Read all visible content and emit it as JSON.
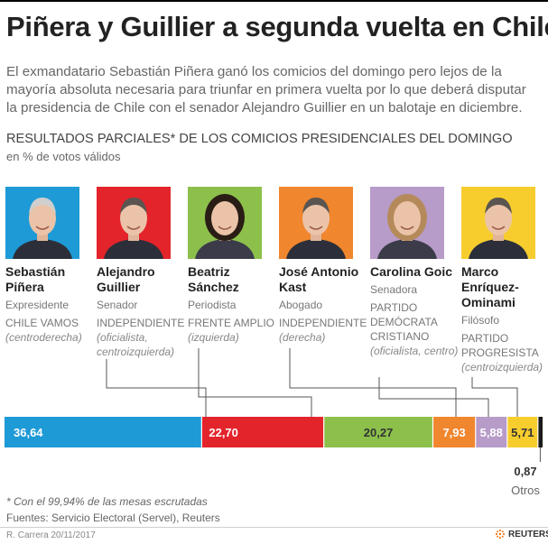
{
  "header": {
    "title": "Piñera y Guillier a segunda vuelta en Chile",
    "subtitle": "El exmandatario Sebastián Piñera ganó los comicios del domingo pero lejos de la mayoría absoluta necesaria para triunfar en primera vuelta por lo que deberá disputar la presidencia de Chile con el senador Alejandro Guillier en un balotaje en diciembre."
  },
  "chart_data": {
    "type": "bar",
    "orientation": "horizontal-stacked",
    "title": "RESULTADOS PARCIALES* DE LOS COMICIOS PRESIDENCIALES DEL DOMINGO",
    "subtitle": "en % de votos válidos",
    "categories": [
      "Sebastián Piñera",
      "Alejandro Guillier",
      "Beatriz Sánchez",
      "José Antonio Kast",
      "Carolina Goic",
      "Marco Enríquez-Ominami",
      "Otros"
    ],
    "values": [
      36.64,
      22.7,
      20.27,
      7.93,
      5.88,
      5.71,
      0.87
    ],
    "value_labels": [
      "36,64",
      "22,70",
      "20,27",
      "7,93",
      "5,88",
      "5,71",
      "0,87"
    ],
    "colors": [
      "#1e9ad6",
      "#e3242b",
      "#8cc04b",
      "#f0862d",
      "#b79bc8",
      "#f7cd2e",
      "#1a1a1a"
    ],
    "other_label": "Otros"
  },
  "candidates": [
    {
      "name": "Sebastián Piñera",
      "role": "Expresidente",
      "party": "CHILE VAMOS",
      "ideology": "(centroderecha)",
      "photo_bg": "#1e9ad6"
    },
    {
      "name": "Alejandro Guillier",
      "role": "Senador",
      "party": "INDEPENDIENTE",
      "ideology": "(oficialista, centroizquierda)",
      "photo_bg": "#e3242b"
    },
    {
      "name": "Beatriz Sánchez",
      "role": "Periodista",
      "party": "FRENTE AMPLIO",
      "ideology": "(izquierda)",
      "photo_bg": "#8cc04b"
    },
    {
      "name": "José Antonio Kast",
      "role": "Abogado",
      "party": "INDEPENDIENTE",
      "ideology": "(derecha)",
      "photo_bg": "#f0862d"
    },
    {
      "name": "Carolina Goic",
      "role": "Senadora",
      "party": "PARTIDO DEMÓCRATA CRISTIANO",
      "ideology": "(oficialista, centro)",
      "photo_bg": "#b79bc8"
    },
    {
      "name": "Marco Enríquez-Ominami",
      "role": "Filósofo",
      "party": "PARTIDO PROGRESISTA",
      "ideology": "(centroizquierda)",
      "photo_bg": "#f7cd2e"
    }
  ],
  "footer": {
    "footnote": "* Con el 99,94% de las mesas escrutadas",
    "sources": "Fuentes: Servicio Electoral (Servel), Reuters",
    "credit": "R. Carrera 20/11/2017",
    "brand": "REUTERS"
  }
}
